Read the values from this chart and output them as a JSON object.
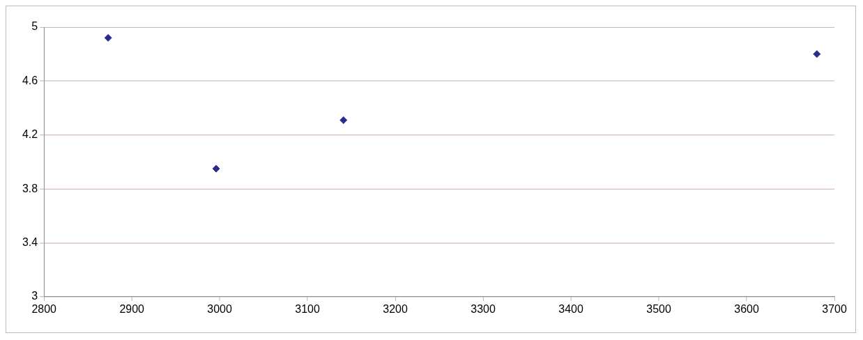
{
  "chart_data": {
    "type": "scatter",
    "x": [
      2873,
      2996,
      3141,
      3680
    ],
    "values": [
      4.92,
      3.95,
      4.31,
      4.8
    ],
    "color": "#2b2b8f",
    "marker": "diamond",
    "xlim": [
      2800,
      3700
    ],
    "xticks": [
      2800,
      2900,
      3000,
      3100,
      3200,
      3300,
      3400,
      3500,
      3600,
      3700
    ],
    "ylim": [
      3,
      5
    ],
    "yticks": [
      3,
      3.4,
      3.8,
      4.2,
      4.6,
      5
    ],
    "grid": "y",
    "legend": false
  }
}
